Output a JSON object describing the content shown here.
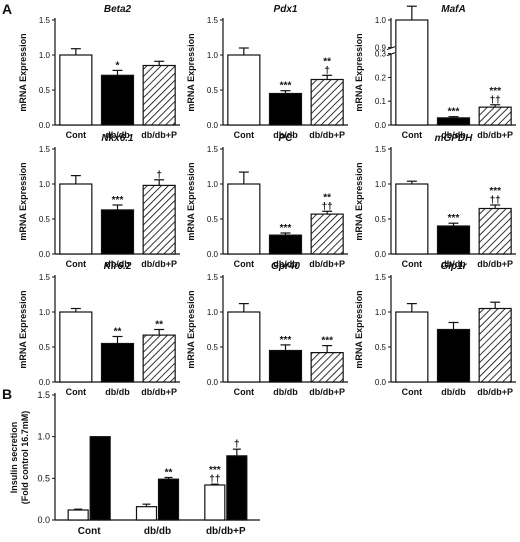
{
  "panel_labels": {
    "A": "A",
    "B": "B"
  },
  "colors": {
    "cont": "#ffffff",
    "dbdb": "#000000",
    "stroke": "#000000",
    "hatch": "#000000",
    "text": "#111111"
  },
  "chart_data": [
    {
      "type": "bar",
      "title": "Beta2",
      "ylabel": "mRNA Expression",
      "categories": [
        "Cont",
        "db/db",
        "db/db+P"
      ],
      "values": [
        1.0,
        0.71,
        0.85
      ],
      "errors": [
        0.09,
        0.07,
        0.06
      ],
      "annotations": [
        "",
        "*",
        ""
      ],
      "ylim": [
        0,
        1.5
      ],
      "yticks": [
        "0.0",
        "0.5",
        "1.0",
        "1.5"
      ],
      "fills": [
        "white",
        "black",
        "hatch"
      ]
    },
    {
      "type": "bar",
      "title": "Pdx1",
      "ylabel": "mRNA Expression",
      "categories": [
        "Cont",
        "db/db",
        "db/db+P"
      ],
      "values": [
        1.0,
        0.45,
        0.65
      ],
      "errors": [
        0.1,
        0.04,
        0.06
      ],
      "annotations": [
        "",
        "***",
        "**\n†"
      ],
      "ylim": [
        0,
        1.5
      ],
      "yticks": [
        "0.0",
        "0.5",
        "1.0",
        "1.5"
      ],
      "fills": [
        "white",
        "black",
        "hatch"
      ]
    },
    {
      "type": "bar",
      "title": "MafA",
      "ylabel": "mRNA Expression",
      "categories": [
        "Cont",
        "db/db",
        "db/db+P"
      ],
      "values": [
        1.0,
        0.03,
        0.075
      ],
      "errors": [
        0.05,
        0.005,
        0.01
      ],
      "annotations": [
        "",
        "***",
        "***\n††"
      ],
      "ylim": [
        0,
        1.0
      ],
      "yticks": [
        "0.0",
        "0.1",
        "0.2",
        "0.3",
        "0.9",
        "1.0"
      ],
      "axis_break": [
        0.3,
        0.9
      ],
      "fills": [
        "white",
        "black",
        "hatch"
      ]
    },
    {
      "type": "bar",
      "title": "Nkx6.1",
      "ylabel": "mRNA Expression",
      "categories": [
        "Cont",
        "db/db",
        "db/db+P"
      ],
      "values": [
        1.0,
        0.63,
        0.98
      ],
      "errors": [
        0.12,
        0.07,
        0.08
      ],
      "annotations": [
        "",
        "***",
        "†"
      ],
      "ylim": [
        0,
        1.5
      ],
      "yticks": [
        "0.0",
        "0.5",
        "1.0",
        "1.5"
      ],
      "fills": [
        "white",
        "black",
        "hatch"
      ]
    },
    {
      "type": "bar",
      "title": "PC",
      "ylabel": "mRNA Expression",
      "categories": [
        "Cont",
        "db/db",
        "db/db+P"
      ],
      "values": [
        1.0,
        0.27,
        0.57
      ],
      "errors": [
        0.17,
        0.03,
        0.04
      ],
      "annotations": [
        "",
        "***",
        "**\n††"
      ],
      "ylim": [
        0,
        1.5
      ],
      "yticks": [
        "0.0",
        "0.5",
        "1.0",
        "1.5"
      ],
      "fills": [
        "white",
        "black",
        "hatch"
      ]
    },
    {
      "type": "bar",
      "title": "mGPDH",
      "ylabel": "mRNA Expression",
      "categories": [
        "Cont",
        "db/db",
        "db/db+P"
      ],
      "values": [
        1.0,
        0.4,
        0.65
      ],
      "errors": [
        0.04,
        0.04,
        0.05
      ],
      "annotations": [
        "",
        "***",
        "***\n††"
      ],
      "ylim": [
        0,
        1.5
      ],
      "yticks": [
        "0.0",
        "0.5",
        "1.0",
        "1.5"
      ],
      "fills": [
        "white",
        "black",
        "hatch"
      ]
    },
    {
      "type": "bar",
      "title": "Kir6.2",
      "ylabel": "mRNA Expression",
      "categories": [
        "Cont",
        "db/db",
        "db/db+P"
      ],
      "values": [
        1.0,
        0.55,
        0.67
      ],
      "errors": [
        0.05,
        0.1,
        0.08
      ],
      "annotations": [
        "",
        "**",
        "**"
      ],
      "ylim": [
        0,
        1.5
      ],
      "yticks": [
        "0.0",
        "0.5",
        "1.0",
        "1.5"
      ],
      "fills": [
        "white",
        "black",
        "hatch"
      ]
    },
    {
      "type": "bar",
      "title": "Gpr40",
      "ylabel": "mRNA Expression",
      "categories": [
        "Cont",
        "db/db",
        "db/db+P"
      ],
      "values": [
        1.0,
        0.45,
        0.42
      ],
      "errors": [
        0.12,
        0.08,
        0.1
      ],
      "annotations": [
        "",
        "***",
        "***"
      ],
      "ylim": [
        0,
        1.5
      ],
      "yticks": [
        "0.0",
        "0.5",
        "1.0",
        "1.5"
      ],
      "fills": [
        "white",
        "black",
        "hatch"
      ]
    },
    {
      "type": "bar",
      "title": "Glp1r",
      "ylabel": "mRNA Expression",
      "categories": [
        "Cont",
        "db/db",
        "db/db+P"
      ],
      "values": [
        1.0,
        0.75,
        1.05
      ],
      "errors": [
        0.12,
        0.1,
        0.09
      ],
      "annotations": [
        "",
        "",
        ""
      ],
      "ylim": [
        0,
        1.5
      ],
      "yticks": [
        "0.0",
        "0.5",
        "1.0",
        "1.5"
      ],
      "fills": [
        "white",
        "black",
        "hatch"
      ]
    },
    {
      "type": "bar",
      "ylabel": "Insulin secretion\n(Fold control 16.7mM)",
      "categories": [
        "Cont",
        "db/db",
        "db/db+P"
      ],
      "series": [
        {
          "values": [
            0.12,
            0.16,
            0.42
          ],
          "errors": [
            0.01,
            0.03,
            0.01
          ],
          "annotations": [
            "",
            "",
            "***\n††"
          ],
          "fill": "white"
        },
        {
          "values": [
            1.0,
            0.49,
            0.77
          ],
          "errors": [
            0.0,
            0.02,
            0.08
          ],
          "annotations": [
            "",
            "**",
            "†"
          ],
          "fill": "black"
        }
      ],
      "ylim": [
        0,
        1.5
      ],
      "yticks": [
        "0.0",
        "0.5",
        "1.0",
        "1.5"
      ]
    }
  ]
}
